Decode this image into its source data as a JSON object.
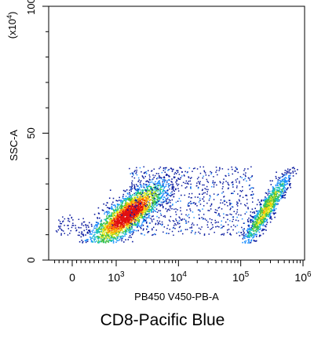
{
  "chart_data": {
    "type": "scatter",
    "render": "density-dot-plot",
    "xlabel": "PB450 V450-PB-A",
    "ylabel": "SSC-A",
    "y_multiplier": "(x10",
    "y_multiplier_exp": "4",
    "y_multiplier_close": ")",
    "x_scale": "biexponential",
    "y_scale": "linear",
    "ylim": [
      0,
      100
    ],
    "x_ticks": [
      {
        "value": 0,
        "base": "0",
        "exp": ""
      },
      {
        "value": 1000,
        "base": "10",
        "exp": "3"
      },
      {
        "value": 10000,
        "base": "10",
        "exp": "4"
      },
      {
        "value": 100000,
        "base": "10",
        "exp": "5"
      },
      {
        "value": 1000000,
        "base": "10",
        "exp": "6"
      }
    ],
    "y_ticks": [
      {
        "value": 0,
        "label": "0"
      },
      {
        "value": 50,
        "label": "50"
      },
      {
        "value": 100,
        "label": "100"
      }
    ],
    "density_colors": [
      "#0a1a9e",
      "#1e90ff",
      "#16c4c4",
      "#3fbf3f",
      "#e8e81a",
      "#ff8c00",
      "#e01010"
    ],
    "populations": [
      {
        "x_center": 1500,
        "x_spread_decades": 0.28,
        "y_center": 18,
        "y_spread": 5.5,
        "count": 2600,
        "peak_density": 1.0
      },
      {
        "x_center": 250000,
        "x_spread_decades": 0.16,
        "y_center": 20,
        "y_spread": 6.5,
        "count": 1100,
        "peak_density": 0.55
      }
    ],
    "events": [
      {
        "x": 1200,
        "y": 18
      },
      {
        "x": 1500,
        "y": 20
      },
      {
        "x": 2000,
        "y": 24
      },
      {
        "x": 900,
        "y": 14
      },
      {
        "x": 3000,
        "y": 30
      },
      {
        "x": 5000,
        "y": 22
      },
      {
        "x": 20000,
        "y": 25
      },
      {
        "x": 60000,
        "y": 18
      },
      {
        "x": 200000,
        "y": 22
      },
      {
        "x": 300000,
        "y": 30
      },
      {
        "x": 250000,
        "y": 12
      }
    ]
  },
  "caption": "CD8-Pacific Blue"
}
